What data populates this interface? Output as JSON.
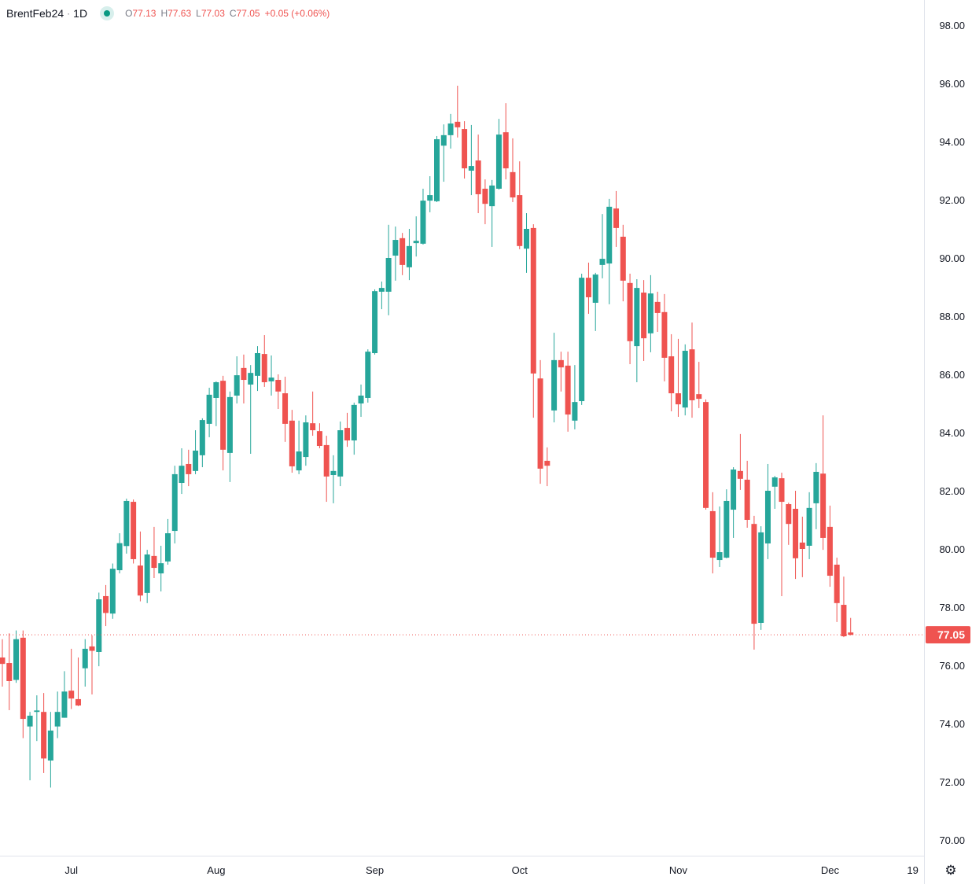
{
  "legend": {
    "symbol": "BrentFeb24",
    "separator": "·",
    "interval": "1D",
    "status_color": "#089981",
    "open_label": "O",
    "open": "77.13",
    "high_label": "H",
    "high": "77.63",
    "low_label": "L",
    "low": "77.03",
    "close_label": "C",
    "close": "77.05",
    "change": "+0.05 (+0.06%)"
  },
  "settings_icon": "gear-icon",
  "chart_data": {
    "type": "candlestick",
    "interval": "1D",
    "colors": {
      "up": "#26a69a",
      "down": "#ef5350",
      "last_price": "#ef5350"
    },
    "ylim": [
      70,
      98
    ],
    "y_ticks": [
      "98.00",
      "96.00",
      "94.00",
      "92.00",
      "90.00",
      "88.00",
      "86.00",
      "84.00",
      "82.00",
      "80.00",
      "78.00",
      "76.00",
      "74.00",
      "72.00",
      "70.00"
    ],
    "x_ticks": [
      {
        "label": "Jul",
        "bar": 10
      },
      {
        "label": "Aug",
        "bar": 31
      },
      {
        "label": "Sep",
        "bar": 54
      },
      {
        "label": "Oct",
        "bar": 75
      },
      {
        "label": "Nov",
        "bar": 98
      },
      {
        "label": "Dec",
        "bar": 120
      },
      {
        "label": "19",
        "bar": 132
      }
    ],
    "last_price": "77.05",
    "candles_ohlc": [
      [
        76.27,
        76.9,
        75.27,
        76.05
      ],
      [
        76.08,
        77.1,
        74.46,
        75.46
      ],
      [
        75.5,
        77.2,
        75.4,
        76.9
      ],
      [
        76.95,
        77.2,
        73.5,
        74.16
      ],
      [
        73.9,
        74.4,
        72.05,
        74.27
      ],
      [
        74.4,
        74.97,
        73.4,
        74.45
      ],
      [
        74.4,
        75.05,
        72.3,
        72.8
      ],
      [
        72.73,
        74.4,
        71.8,
        73.76
      ],
      [
        73.9,
        75.1,
        73.5,
        74.4
      ],
      [
        74.2,
        75.8,
        74.2,
        75.1
      ],
      [
        75.13,
        76.57,
        74.5,
        74.86
      ],
      [
        74.84,
        76.27,
        74.6,
        74.62
      ],
      [
        75.9,
        76.9,
        75.27,
        76.57
      ],
      [
        76.65,
        77.03,
        75.0,
        76.5
      ],
      [
        76.46,
        78.5,
        75.97,
        78.27
      ],
      [
        78.38,
        78.76,
        77.35,
        77.8
      ],
      [
        77.78,
        79.5,
        77.6,
        79.32
      ],
      [
        79.27,
        80.54,
        79.16,
        80.2
      ],
      [
        80.1,
        81.73,
        79.84,
        81.65
      ],
      [
        81.62,
        81.7,
        79.5,
        79.65
      ],
      [
        79.43,
        80.6,
        78.2,
        78.4
      ],
      [
        78.49,
        79.97,
        78.14,
        79.81
      ],
      [
        79.76,
        80.76,
        79.0,
        79.35
      ],
      [
        79.16,
        80.11,
        78.54,
        79.51
      ],
      [
        79.57,
        81.03,
        79.46,
        80.54
      ],
      [
        80.62,
        82.86,
        80.19,
        82.57
      ],
      [
        82.27,
        83.46,
        81.89,
        82.86
      ],
      [
        82.92,
        83.41,
        82.16,
        82.57
      ],
      [
        82.68,
        84.08,
        82.57,
        83.38
      ],
      [
        83.22,
        84.49,
        82.81,
        84.43
      ],
      [
        84.3,
        85.54,
        83.84,
        85.3
      ],
      [
        85.19,
        85.76,
        84.22,
        85.73
      ],
      [
        85.78,
        85.95,
        82.7,
        83.41
      ],
      [
        83.3,
        85.41,
        82.3,
        85.22
      ],
      [
        85.27,
        86.62,
        85.0,
        85.97
      ],
      [
        86.22,
        86.68,
        85.0,
        85.81
      ],
      [
        85.65,
        86.32,
        83.27,
        86.05
      ],
      [
        85.95,
        86.97,
        85.43,
        86.73
      ],
      [
        86.7,
        87.35,
        85.57,
        85.73
      ],
      [
        85.76,
        86.65,
        85.27,
        85.89
      ],
      [
        85.81,
        86.0,
        84.81,
        85.41
      ],
      [
        85.35,
        85.92,
        83.68,
        84.3
      ],
      [
        84.41,
        84.78,
        82.62,
        82.84
      ],
      [
        82.7,
        84.41,
        82.57,
        83.35
      ],
      [
        83.16,
        84.59,
        82.86,
        84.35
      ],
      [
        84.32,
        85.41,
        83.89,
        84.08
      ],
      [
        84.05,
        84.32,
        83.46,
        83.54
      ],
      [
        83.57,
        83.89,
        81.62,
        82.49
      ],
      [
        82.54,
        83.22,
        81.57,
        82.68
      ],
      [
        82.49,
        84.38,
        82.16,
        84.08
      ],
      [
        84.16,
        84.68,
        83.51,
        83.73
      ],
      [
        83.73,
        85.03,
        83.24,
        84.95
      ],
      [
        85.0,
        85.65,
        84.54,
        85.27
      ],
      [
        85.19,
        86.86,
        85.03,
        86.78
      ],
      [
        86.73,
        88.92,
        86.68,
        88.86
      ],
      [
        88.84,
        89.19,
        88.24,
        88.97
      ],
      [
        88.84,
        91.14,
        88.03,
        90.0
      ],
      [
        90.08,
        91.08,
        89.22,
        90.62
      ],
      [
        90.68,
        90.86,
        89.41,
        89.76
      ],
      [
        89.68,
        91.0,
        89.24,
        90.41
      ],
      [
        90.51,
        91.43,
        90.05,
        90.59
      ],
      [
        90.49,
        92.38,
        90.46,
        91.97
      ],
      [
        91.97,
        92.81,
        91.57,
        92.16
      ],
      [
        91.95,
        94.19,
        91.92,
        94.08
      ],
      [
        93.86,
        94.59,
        92.62,
        94.22
      ],
      [
        94.22,
        94.95,
        93.76,
        94.62
      ],
      [
        94.68,
        95.92,
        94.14,
        94.49
      ],
      [
        94.43,
        94.7,
        92.73,
        93.08
      ],
      [
        93.0,
        94.57,
        92.16,
        93.16
      ],
      [
        93.35,
        94.24,
        91.54,
        92.19
      ],
      [
        92.38,
        92.7,
        91.16,
        91.86
      ],
      [
        91.78,
        92.68,
        90.38,
        92.49
      ],
      [
        92.38,
        94.78,
        92.35,
        94.24
      ],
      [
        94.32,
        95.32,
        92.7,
        93.08
      ],
      [
        92.95,
        94.11,
        91.92,
        92.08
      ],
      [
        92.16,
        93.32,
        90.3,
        90.41
      ],
      [
        90.32,
        91.54,
        89.49,
        91.0
      ],
      [
        91.03,
        91.16,
        84.51,
        86.03
      ],
      [
        85.86,
        86.49,
        82.24,
        82.76
      ],
      [
        83.03,
        83.49,
        82.16,
        82.86
      ],
      [
        84.76,
        87.43,
        84.35,
        86.49
      ],
      [
        86.49,
        86.78,
        85.41,
        86.24
      ],
      [
        86.3,
        86.78,
        84.03,
        84.62
      ],
      [
        84.41,
        86.32,
        84.11,
        85.05
      ],
      [
        85.08,
        89.46,
        84.95,
        89.32
      ],
      [
        89.32,
        89.84,
        88.08,
        88.65
      ],
      [
        88.46,
        89.49,
        87.49,
        89.43
      ],
      [
        89.76,
        91.51,
        89.3,
        89.97
      ],
      [
        89.81,
        92.03,
        88.41,
        91.76
      ],
      [
        91.7,
        92.3,
        90.38,
        91.03
      ],
      [
        90.73,
        91.14,
        88.51,
        89.22
      ],
      [
        89.14,
        89.46,
        86.35,
        87.14
      ],
      [
        86.97,
        89.27,
        85.73,
        88.97
      ],
      [
        88.81,
        89.24,
        86.46,
        87.24
      ],
      [
        87.41,
        89.41,
        86.76,
        88.78
      ],
      [
        88.49,
        88.84,
        87.46,
        88.11
      ],
      [
        88.14,
        88.76,
        85.76,
        86.57
      ],
      [
        86.62,
        87.38,
        84.73,
        85.35
      ],
      [
        85.35,
        87.22,
        84.54,
        84.97
      ],
      [
        84.86,
        87.03,
        84.59,
        86.81
      ],
      [
        86.86,
        87.78,
        84.51,
        85.11
      ],
      [
        85.32,
        86.43,
        84.84,
        85.16
      ],
      [
        85.05,
        85.14,
        81.35,
        81.41
      ],
      [
        81.3,
        81.95,
        79.16,
        79.7
      ],
      [
        79.62,
        81.46,
        79.38,
        79.89
      ],
      [
        79.7,
        82.05,
        79.68,
        81.65
      ],
      [
        81.35,
        82.81,
        80.38,
        82.73
      ],
      [
        82.68,
        83.95,
        82.03,
        82.41
      ],
      [
        82.38,
        83.03,
        80.73,
        81.0
      ],
      [
        80.86,
        81.14,
        76.54,
        77.43
      ],
      [
        77.46,
        80.78,
        77.22,
        80.57
      ],
      [
        80.19,
        82.92,
        79.65,
        82.0
      ],
      [
        82.14,
        82.51,
        81.38,
        82.46
      ],
      [
        82.43,
        82.62,
        78.38,
        81.62
      ],
      [
        81.54,
        81.59,
        80.14,
        80.86
      ],
      [
        81.38,
        82.0,
        78.97,
        79.68
      ],
      [
        80.22,
        81.11,
        79.03,
        80.0
      ],
      [
        80.11,
        81.95,
        79.65,
        81.41
      ],
      [
        81.57,
        82.95,
        80.68,
        82.65
      ],
      [
        82.59,
        84.59,
        79.97,
        80.38
      ],
      [
        80.76,
        81.49,
        78.7,
        79.08
      ],
      [
        79.46,
        79.7,
        77.49,
        78.14
      ],
      [
        78.08,
        79.05,
        76.97,
        77.0
      ],
      [
        77.13,
        77.63,
        77.03,
        77.05
      ]
    ]
  }
}
